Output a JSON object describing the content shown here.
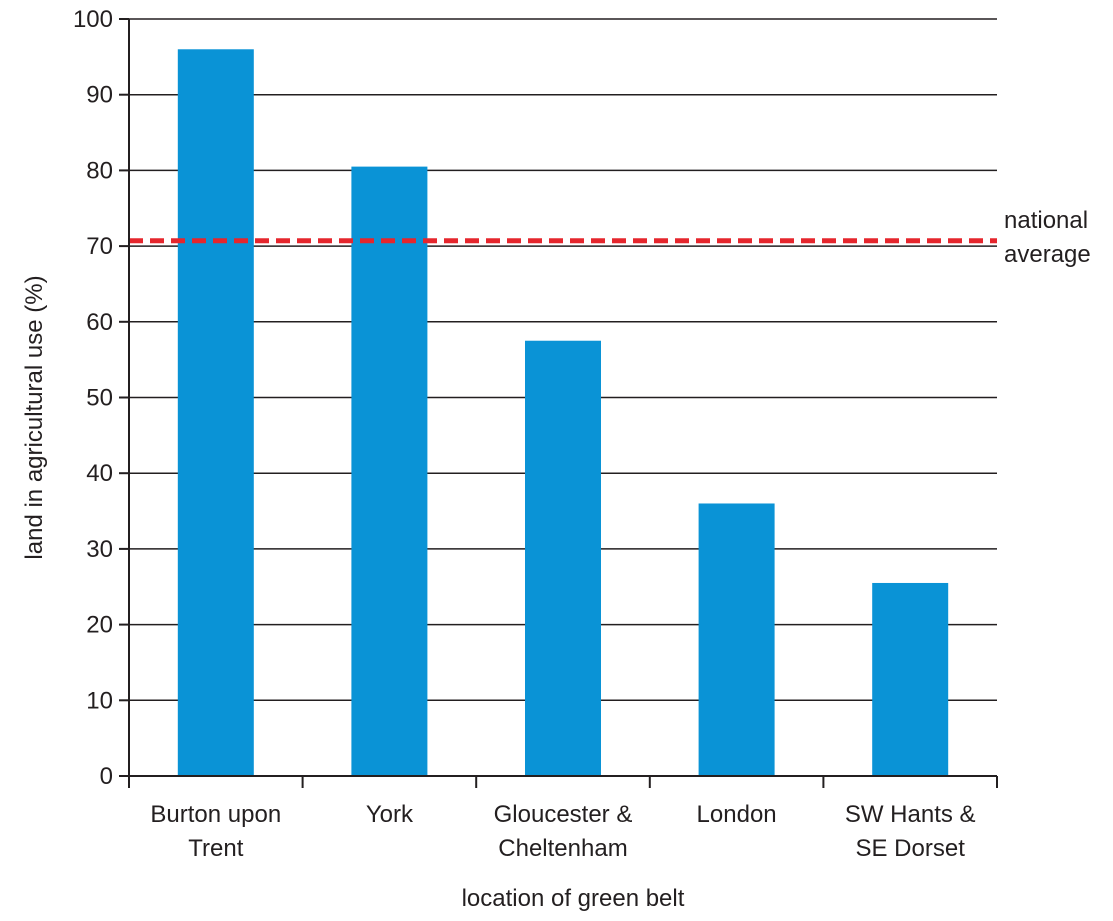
{
  "chart_data": {
    "type": "bar",
    "title": "",
    "xlabel": "location of green belt",
    "ylabel": "land in agricultural use (%)",
    "ylim": [
      0,
      100
    ],
    "y_ticks": [
      0,
      10,
      20,
      30,
      40,
      50,
      60,
      70,
      80,
      90,
      100
    ],
    "grid": true,
    "categories": [
      [
        "Burton upon",
        "Trent"
      ],
      [
        "York"
      ],
      [
        "Gloucester &",
        "Cheltenham"
      ],
      [
        "London"
      ],
      [
        "SW Hants &",
        "SE Dorset"
      ]
    ],
    "values": [
      96,
      80.5,
      57.5,
      36,
      25.5
    ],
    "reference_line": {
      "value": 70.7,
      "label": [
        "national",
        "average"
      ],
      "style": "dashed"
    },
    "colors": {
      "bar": "#0a93d6",
      "reference_line": "#e5262d",
      "axis": "#231f20",
      "grid": "#231f20"
    }
  }
}
